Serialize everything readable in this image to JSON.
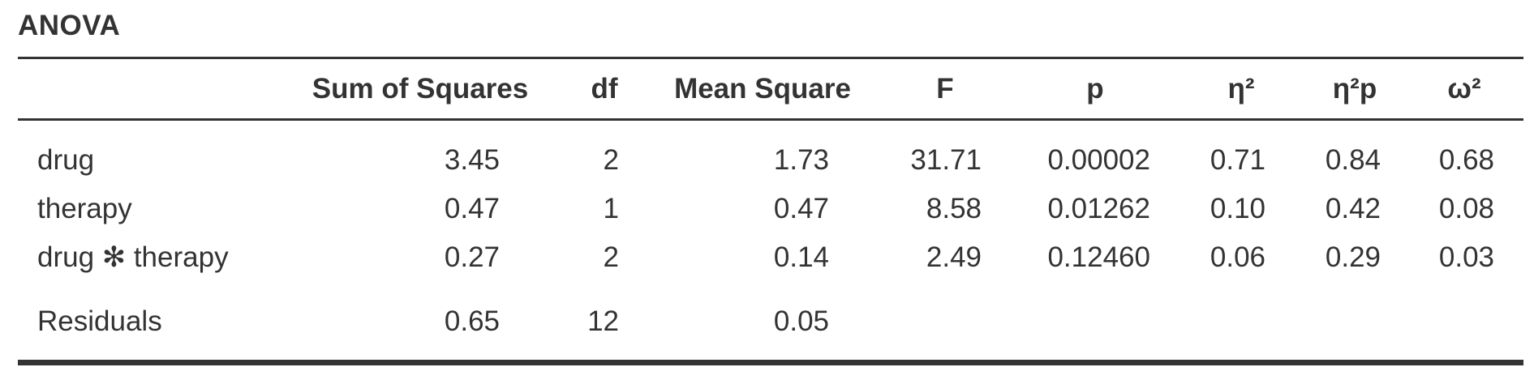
{
  "title": "ANOVA",
  "columns": [
    "Sum of Squares",
    "df",
    "Mean Square",
    "F",
    "p",
    "η²",
    "η²p",
    "ω²"
  ],
  "rows": [
    {
      "term": "drug",
      "values": [
        "3.45",
        "2",
        "1.73",
        "31.71",
        "0.00002",
        "0.71",
        "0.84",
        "0.68"
      ]
    },
    {
      "term": "therapy",
      "values": [
        "0.47",
        "1",
        "0.47",
        "8.58",
        "0.01262",
        "0.10",
        "0.42",
        "0.08"
      ]
    },
    {
      "term": "drug ✻ therapy",
      "values": [
        "0.27",
        "2",
        "0.14",
        "2.49",
        "0.12460",
        "0.06",
        "0.29",
        "0.03"
      ]
    },
    {
      "term": "Residuals",
      "values": [
        "0.65",
        "12",
        "0.05",
        "",
        "",
        "",
        "",
        ""
      ]
    }
  ]
}
